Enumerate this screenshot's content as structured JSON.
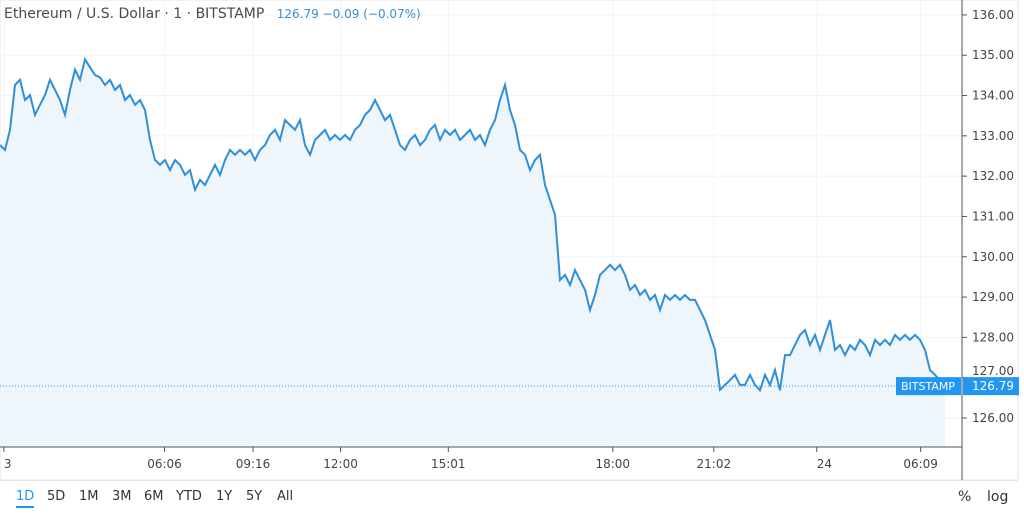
{
  "legend": {
    "symbol": "Ethereum / U.S. Dollar · 1 · BITSTAMP",
    "last": "126.79",
    "change": "−0.09",
    "change_pct": "(−0.07%)"
  },
  "ranges": [
    "1D",
    "5D",
    "1M",
    "3M",
    "6M",
    "YTD",
    "1Y",
    "5Y",
    "All"
  ],
  "active_range": "1D",
  "controls": {
    "percent": "%",
    "log": "log"
  },
  "colors": {
    "line": "#2f8fd8",
    "fill": "#eef6fc",
    "label": "#2196f3"
  },
  "chart_data": {
    "type": "area",
    "title": "Ethereum / U.S. Dollar · 1 · BITSTAMP",
    "ylim": [
      125.28,
      136.37
    ],
    "yticks": [
      "126.00",
      "127.00",
      "128.00",
      "129.00",
      "130.00",
      "131.00",
      "132.00",
      "133.00",
      "134.00",
      "135.00",
      "136.00"
    ],
    "xticks": [
      {
        "label": "3",
        "pos": 0.004
      },
      {
        "label": "06:06",
        "pos": 0.171
      },
      {
        "label": "09:16",
        "pos": 0.263
      },
      {
        "label": "12:00",
        "pos": 0.354
      },
      {
        "label": "15:01",
        "pos": 0.466
      },
      {
        "label": "18:00",
        "pos": 0.637
      },
      {
        "label": "21:02",
        "pos": 0.742
      },
      {
        "label": "24",
        "pos": 0.849
      },
      {
        "label": "06:09",
        "pos": 0.957
      }
    ],
    "last_price": {
      "exchange": "BITSTAMP",
      "value": "126.79"
    },
    "values": [
      132.77,
      132.65,
      133.15,
      134.26,
      134.39,
      133.89,
      134.01,
      133.52,
      133.77,
      134.01,
      134.39,
      134.14,
      133.89,
      133.52,
      134.14,
      134.64,
      134.39,
      134.9,
      134.7,
      134.51,
      134.45,
      134.26,
      134.39,
      134.14,
      134.26,
      133.89,
      134.01,
      133.77,
      133.89,
      133.64,
      132.9,
      132.4,
      132.28,
      132.4,
      132.15,
      132.4,
      132.28,
      132.03,
      132.15,
      131.66,
      131.91,
      131.78,
      132.03,
      132.28,
      132.03,
      132.4,
      132.65,
      132.53,
      132.65,
      132.53,
      132.65,
      132.4,
      132.65,
      132.77,
      133.02,
      133.15,
      132.9,
      133.39,
      133.27,
      133.15,
      133.39,
      132.77,
      132.53,
      132.9,
      133.02,
      133.15,
      132.9,
      133.02,
      132.9,
      133.02,
      132.9,
      133.15,
      133.27,
      133.52,
      133.64,
      133.89,
      133.64,
      133.39,
      133.52,
      133.15,
      132.77,
      132.65,
      132.9,
      133.02,
      132.77,
      132.9,
      133.15,
      133.27,
      132.9,
      133.15,
      133.02,
      133.15,
      132.9,
      133.02,
      133.15,
      132.9,
      133.02,
      132.77,
      133.15,
      133.39,
      133.89,
      134.26,
      133.64,
      133.27,
      132.65,
      132.53,
      132.15,
      132.4,
      132.53,
      131.78,
      131.41,
      131.04,
      129.42,
      129.55,
      129.3,
      129.67,
      129.42,
      129.18,
      128.68,
      129.05,
      129.55,
      129.67,
      129.8,
      129.67,
      129.8,
      129.55,
      129.18,
      129.3,
      129.05,
      129.18,
      128.93,
      129.05,
      128.68,
      129.05,
      128.93,
      129.05,
      128.93,
      129.05,
      128.93,
      128.93,
      128.68,
      128.43,
      128.06,
      127.69,
      126.7,
      126.82,
      126.94,
      127.07,
      126.82,
      126.82,
      127.07,
      126.82,
      126.69,
      127.07,
      126.82,
      127.19,
      126.69,
      127.56,
      127.56,
      127.81,
      128.06,
      128.18,
      127.81,
      128.06,
      127.69,
      128.06,
      128.43,
      127.69,
      127.81,
      127.56,
      127.81,
      127.69,
      127.94,
      127.81,
      127.56,
      127.94,
      127.81,
      127.94,
      127.81,
      128.06,
      127.94,
      128.06,
      127.94,
      128.06,
      127.94,
      127.69,
      127.19,
      127.07,
      126.94,
      126.79
    ]
  }
}
